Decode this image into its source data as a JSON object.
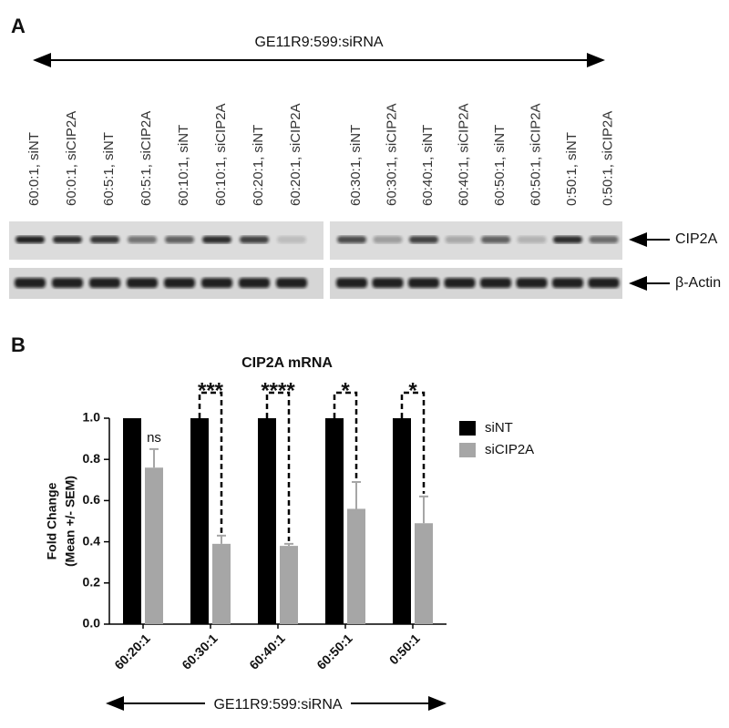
{
  "blot": {
    "panel_label": "A",
    "arrow_label": "GE11R9:599:siRNA",
    "lanes": [
      "60:0:1, siNT",
      "60:0:1, siCIP2A",
      "60:5:1, siNT",
      "60:5:1, siCIP2A",
      "60:10:1, siNT",
      "60:10:1, siCIP2A",
      "60:20:1, siNT",
      "60:20:1, siCIP2A",
      "60:30:1, siNT",
      "60:30:1, siCIP2A",
      "60:40:1, siNT",
      "60:40:1, siCIP2A",
      "60:50:1, siNT",
      "60:50:1, siCIP2A",
      "0:50:1, siNT",
      "0:50:1, siCIP2A"
    ],
    "bands": [
      "CIP2A",
      "β-Actin"
    ]
  },
  "chart_data": {
    "type": "bar",
    "panel_label": "B",
    "title": "CIP2A mRNA",
    "ylabel": [
      "Fold Change",
      "(Mean +/- SEM)"
    ],
    "xlabel": "GE11R9:599:siRNA",
    "categories": [
      "60:20:1",
      "60:30:1",
      "60:40:1",
      "60:50:1",
      "0:50:1"
    ],
    "series": [
      {
        "name": "siNT",
        "color": "#000000",
        "values": [
          1.0,
          1.0,
          1.0,
          1.0,
          1.0
        ]
      },
      {
        "name": "siCIP2A",
        "color": "#a6a6a6",
        "values": [
          0.76,
          0.39,
          0.38,
          0.56,
          0.49
        ],
        "errors": [
          0.09,
          0.04,
          0.01,
          0.13,
          0.13
        ]
      }
    ],
    "significance": [
      "ns",
      "***",
      "****",
      "*",
      "*"
    ],
    "ylim": [
      0,
      1.0
    ],
    "yticks": [
      {
        "value": 0,
        "label": "0.0"
      },
      {
        "value": 0.2,
        "label": "0.2"
      },
      {
        "value": 0.4,
        "label": "0.4"
      },
      {
        "value": 0.6,
        "label": "0.6"
      },
      {
        "value": 0.8,
        "label": "0.8"
      },
      {
        "value": 1.0,
        "label": "1.0"
      }
    ]
  }
}
